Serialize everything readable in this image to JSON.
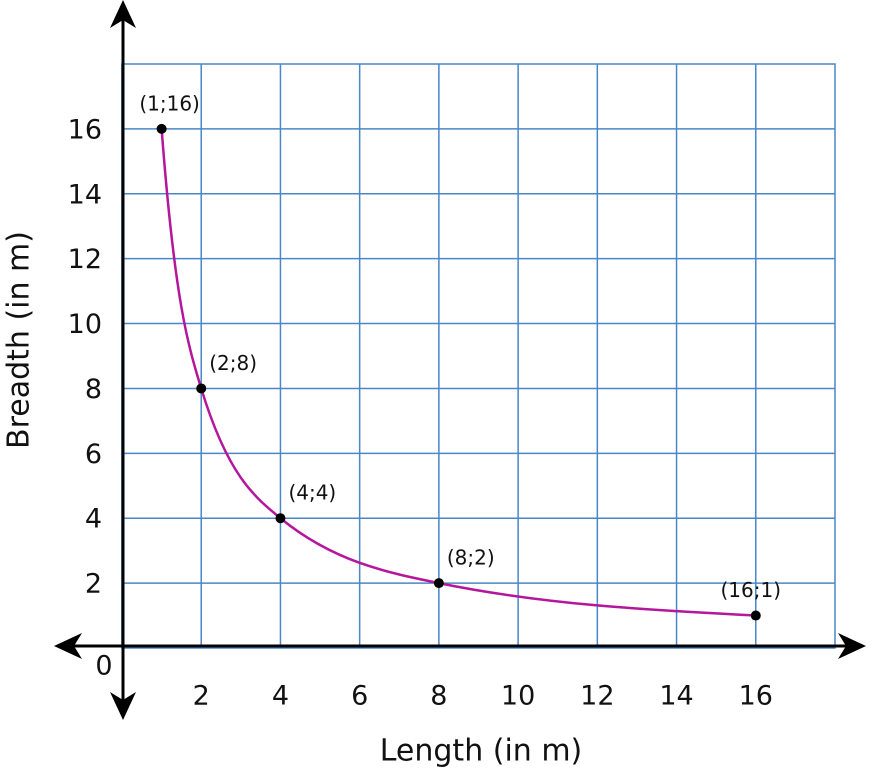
{
  "chart_data": {
    "type": "line",
    "x_label": "Length (in m)",
    "y_label": "Breadth (in m)",
    "series": [
      {
        "x": [
          1,
          2,
          4,
          8,
          16
        ],
        "values": [
          16,
          8,
          4,
          2,
          1
        ],
        "color": "#b4169c",
        "value_labels": [
          "(1;16)",
          "(2;8)",
          "(4;4)",
          "(8;2)",
          "(16;1)"
        ]
      }
    ],
    "xlim": [
      0,
      18
    ],
    "ylim": [
      0,
      18
    ],
    "xticks": [
      0,
      2,
      4,
      6,
      8,
      10,
      12,
      14,
      16
    ],
    "yticks": [
      2,
      4,
      6,
      8,
      10,
      12,
      14,
      16
    ],
    "grid": true,
    "grid_color": "#4a86c8"
  }
}
